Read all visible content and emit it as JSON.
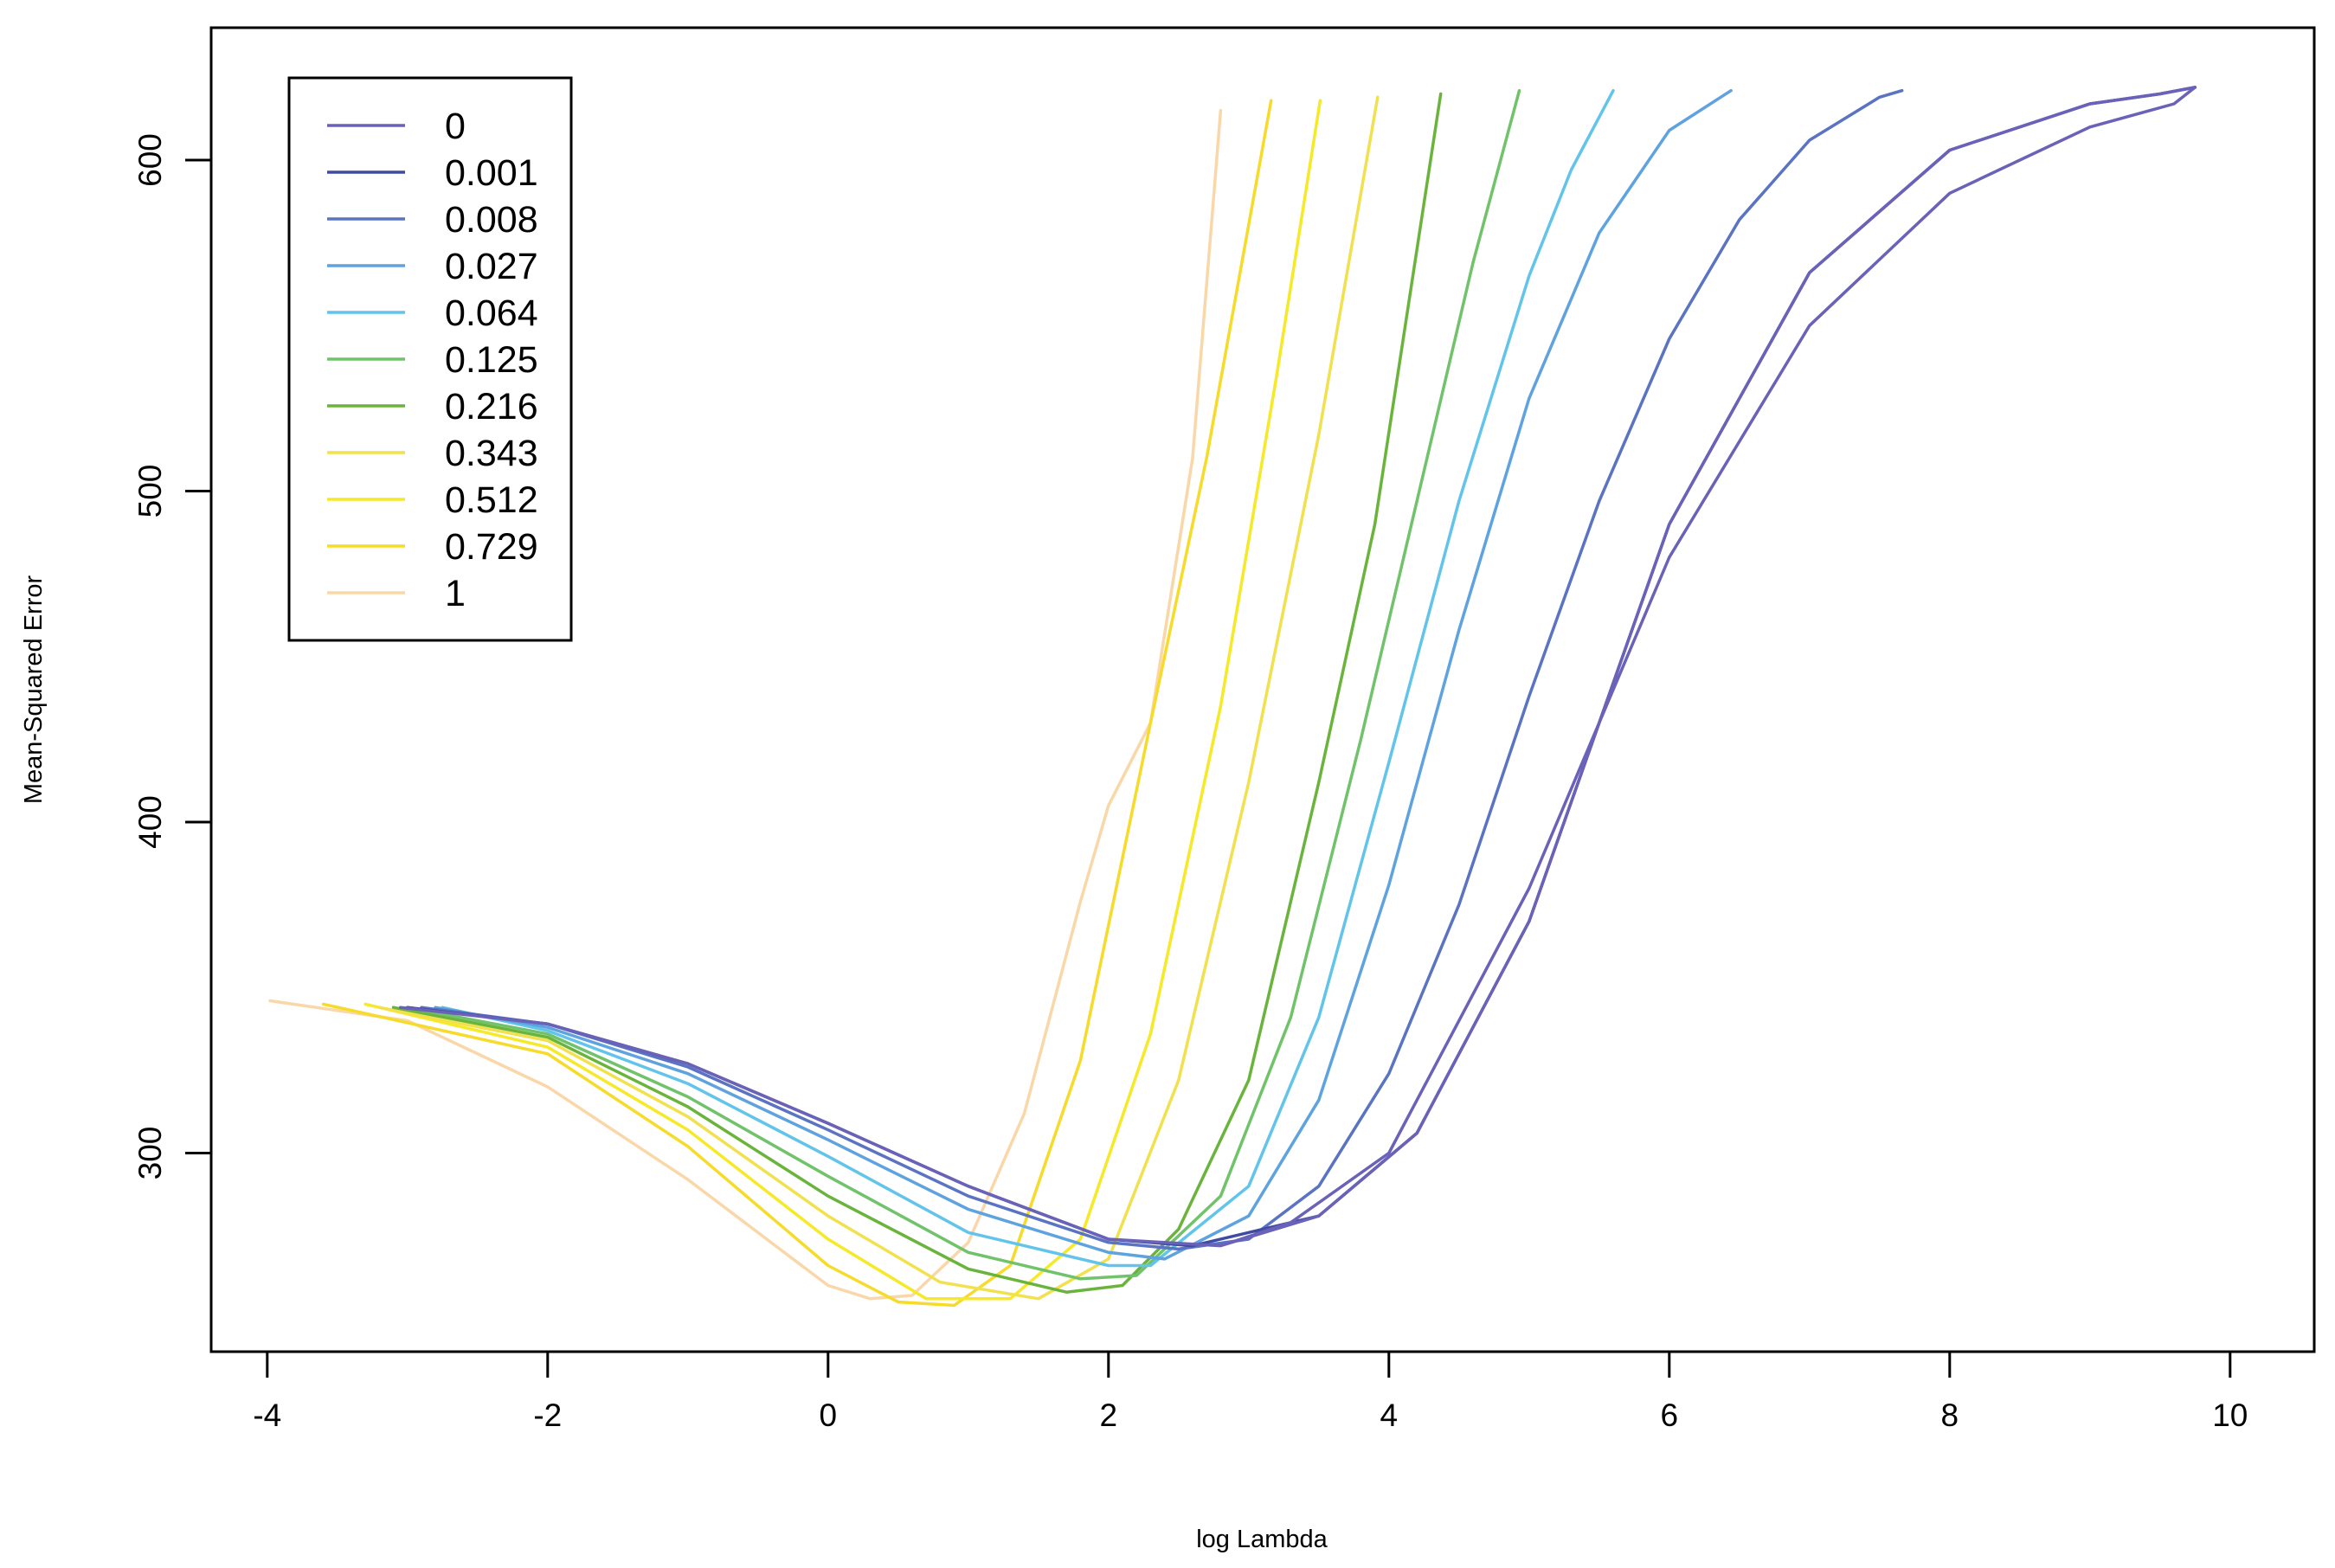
{
  "chart_data": {
    "type": "line",
    "title": "",
    "xlabel": "log Lambda",
    "ylabel": "Mean-Squared Error",
    "xlim": [
      -4.4,
      10.6
    ],
    "ylim": [
      240,
      640
    ],
    "xticks": [
      -4,
      -2,
      0,
      2,
      4,
      6,
      8,
      10
    ],
    "xtick_labels": [
      "-4",
      "-2",
      "0",
      "2",
      "4",
      "6",
      "8",
      "10"
    ],
    "yticks": [
      300,
      400,
      500,
      600
    ],
    "ytick_labels": [
      "300",
      "400",
      "500",
      "600"
    ],
    "grid": false,
    "legend_position": "top-left",
    "series": [
      {
        "name": "0",
        "color": "#6a62b8",
        "x": [
          -3.05,
          -2.0,
          -1.0,
          0.0,
          1.0,
          2.0,
          2.8,
          3.5,
          4.2,
          5.0,
          6.0,
          7.0,
          8.0,
          9.0,
          9.5,
          9.75,
          9.6,
          9.0,
          8.0,
          7.0,
          6.0,
          5.0,
          4.0,
          3.3,
          2.8
        ],
        "y": [
          344,
          339,
          327,
          309,
          290,
          274,
          272,
          281,
          306,
          370,
          490,
          566,
          603,
          617,
          620,
          622,
          617,
          610,
          590,
          550,
          480,
          380,
          300,
          279,
          272
        ]
      },
      {
        "name": "0.001",
        "color": "#3f4aa2",
        "x": [
          -3.0,
          -2.0,
          -1.0,
          0.0,
          1.0,
          2.0,
          2.6,
          3.5,
          4.2,
          5.0,
          6.0,
          7.0,
          8.0,
          9.0,
          9.5,
          9.75
        ],
        "y": [
          344,
          339,
          327,
          309,
          290,
          274,
          272,
          281,
          306,
          370,
          490,
          566,
          603,
          617,
          620,
          622
        ]
      },
      {
        "name": "0.008",
        "color": "#5a73c2",
        "x": [
          -2.9,
          -2.0,
          -1.0,
          0.0,
          1.0,
          2.0,
          2.5,
          3.0,
          3.5,
          4.0,
          4.5,
          5.0,
          5.5,
          6.0,
          6.5,
          7.0,
          7.5,
          7.66
        ],
        "y": [
          344,
          339,
          326,
          307,
          287,
          273,
          271,
          274,
          290,
          324,
          375,
          438,
          497,
          546,
          582,
          606,
          619,
          621
        ]
      },
      {
        "name": "0.027",
        "color": "#5ea2e0",
        "x": [
          -2.8,
          -2.0,
          -1.0,
          0.0,
          1.0,
          2.0,
          2.4,
          3.0,
          3.5,
          4.0,
          4.5,
          5.0,
          5.5,
          6.0,
          6.44
        ],
        "y": [
          344,
          338,
          324,
          304,
          283,
          270,
          268,
          281,
          316,
          381,
          458,
          528,
          578,
          609,
          621
        ]
      },
      {
        "name": "0.064",
        "color": "#62c4ea",
        "x": [
          -2.75,
          -2.0,
          -1.0,
          0.0,
          1.0,
          2.0,
          2.3,
          3.0,
          3.5,
          4.0,
          4.5,
          5.0,
          5.3,
          5.6
        ],
        "y": [
          344,
          337,
          321,
          299,
          276,
          266,
          266,
          290,
          341,
          418,
          497,
          565,
          597,
          621
        ]
      },
      {
        "name": "0.125",
        "color": "#70c36a",
        "x": [
          -3.0,
          -2.0,
          -1.0,
          0.0,
          1.0,
          1.8,
          2.2,
          2.8,
          3.3,
          3.8,
          4.2,
          4.6,
          4.93
        ],
        "y": [
          344,
          336,
          317,
          293,
          270,
          262,
          263,
          287,
          341,
          425,
          497,
          569,
          621
        ]
      },
      {
        "name": "0.216",
        "color": "#6ab43c",
        "x": [
          -3.1,
          -2.0,
          -1.0,
          0.0,
          1.0,
          1.7,
          2.1,
          2.5,
          3.0,
          3.5,
          3.9,
          4.37
        ],
        "y": [
          344,
          335,
          314,
          287,
          265,
          258,
          260,
          277,
          322,
          412,
          490,
          620
        ]
      },
      {
        "name": "0.343",
        "color": "#f2e14e",
        "x": [
          -3.2,
          -2.0,
          -1.0,
          0.0,
          0.8,
          1.5,
          2.0,
          2.5,
          3.0,
          3.5,
          3.92
        ],
        "y": [
          344,
          334,
          311,
          281,
          261,
          256,
          268,
          322,
          412,
          517,
          619
        ]
      },
      {
        "name": "0.512",
        "color": "#f5e928",
        "x": [
          -3.3,
          -2.0,
          -1.0,
          0.0,
          0.7,
          1.3,
          1.8,
          2.3,
          2.8,
          3.2,
          3.51
        ],
        "y": [
          345,
          332,
          307,
          274,
          256,
          256,
          274,
          336,
          435,
          535,
          618
        ]
      },
      {
        "name": "0.729",
        "color": "#f7db2a",
        "x": [
          -3.6,
          -2.0,
          -1.0,
          0.0,
          0.5,
          0.9,
          1.3,
          1.8,
          2.3,
          2.7,
          3.16
        ],
        "y": [
          345,
          330,
          302,
          266,
          255,
          254,
          266,
          328,
          430,
          510,
          618
        ]
      },
      {
        "name": "1",
        "color": "#fad7a8",
        "x": [
          -3.98,
          -3.0,
          -2.0,
          -1.0,
          0.0,
          0.3,
          0.6,
          1.0,
          1.4,
          1.8,
          2.0,
          2.3,
          2.6,
          2.8
        ],
        "y": [
          346,
          340,
          320,
          292,
          260,
          256,
          257,
          273,
          312,
          376,
          405,
          430,
          510,
          615
        ]
      }
    ]
  }
}
